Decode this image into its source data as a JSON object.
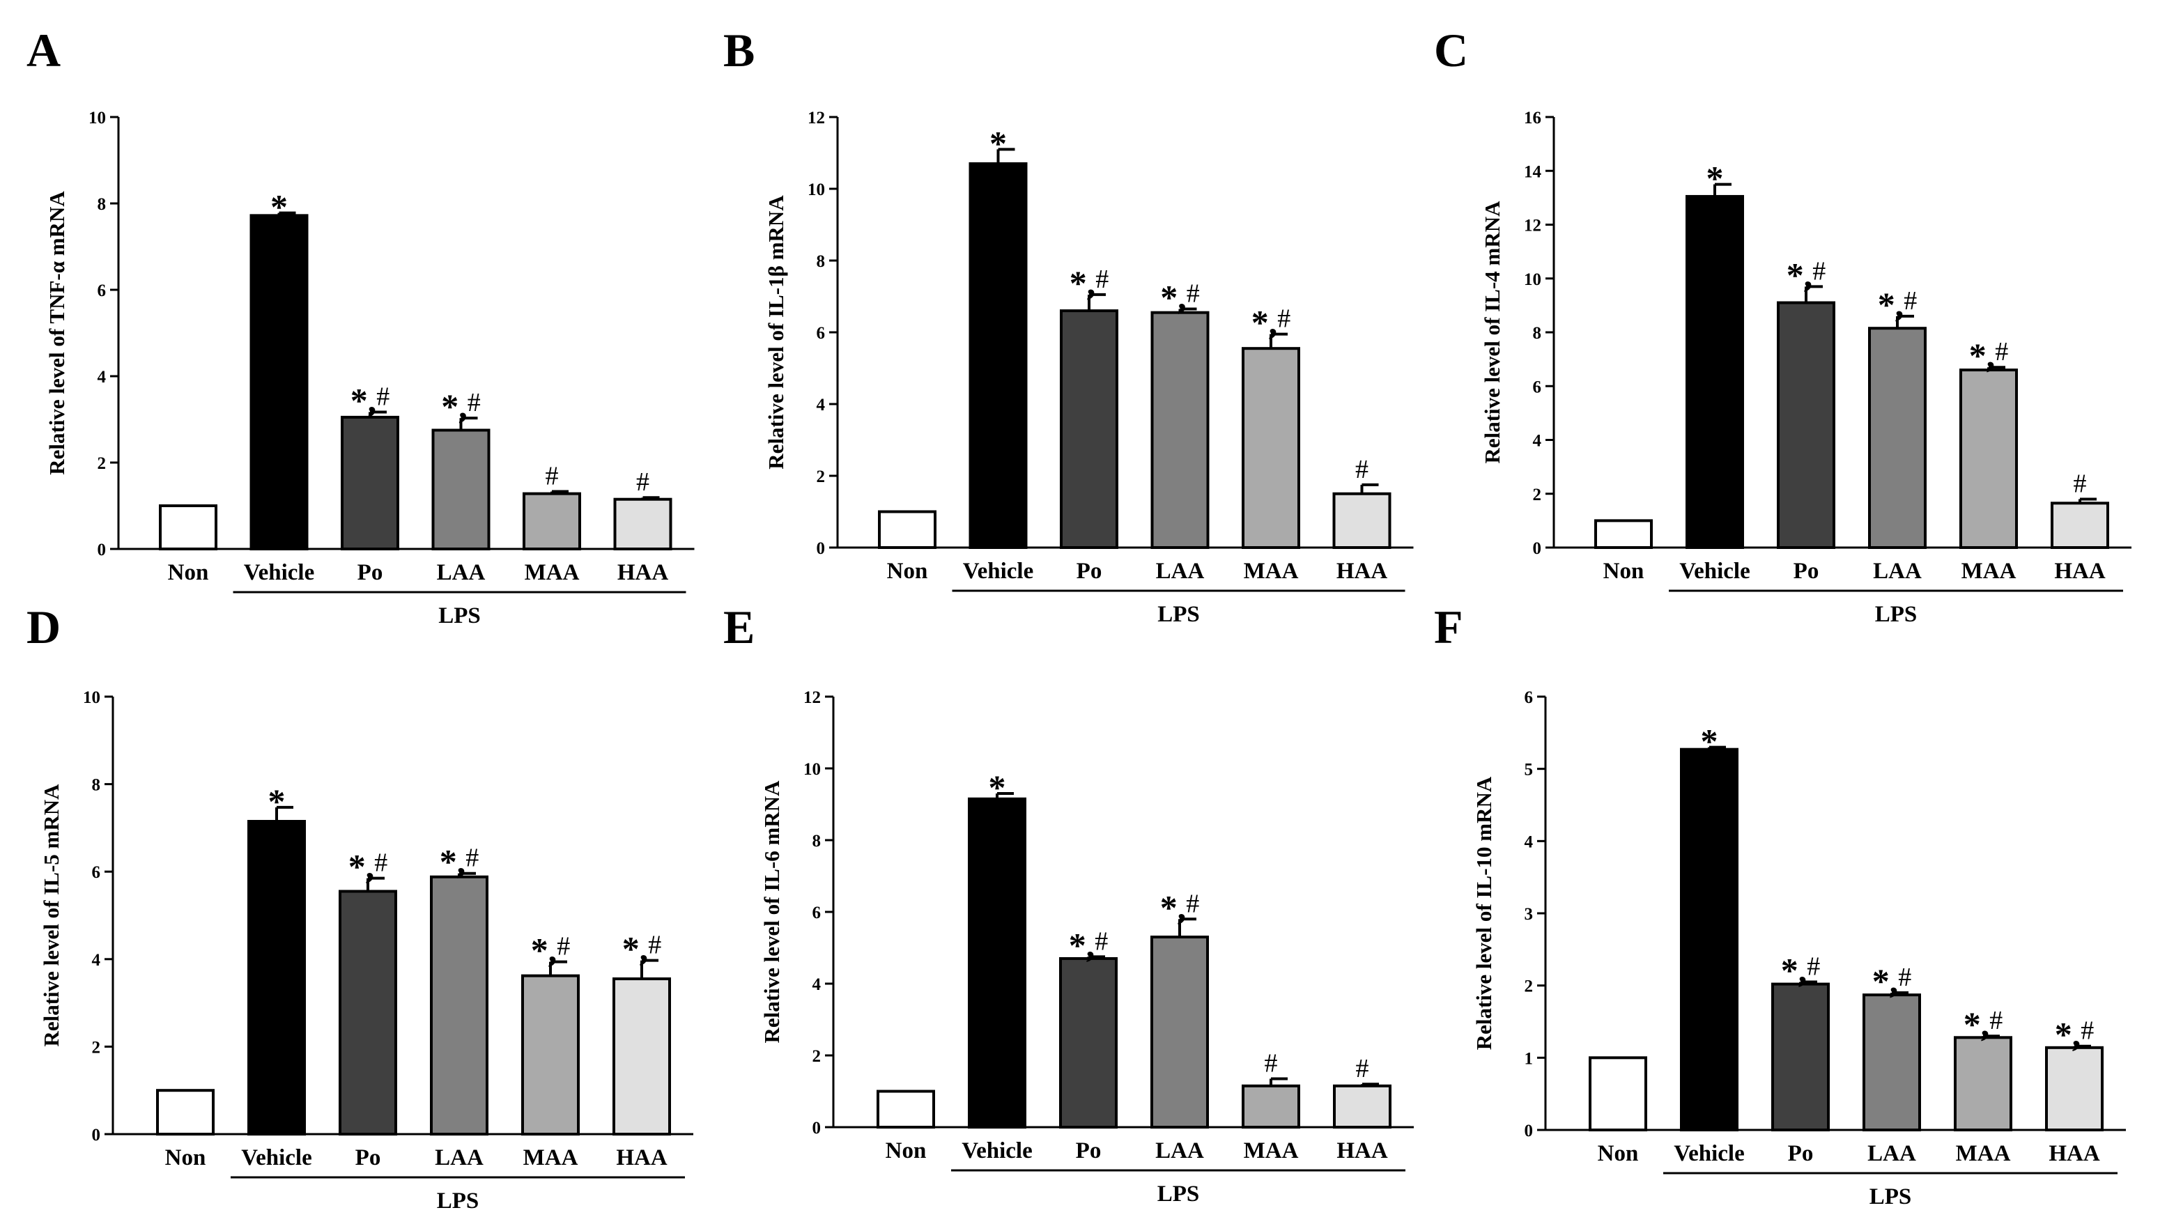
{
  "figure_style": {
    "bar_fills": [
      "#ffffff",
      "#000000",
      "#404040",
      "#808080",
      "#aaaaaa",
      "#e0e0e0"
    ],
    "bar_stroke": "#000000",
    "text_color": "#000000"
  },
  "chart_data": [
    {
      "type": "bar",
      "panel": "A",
      "ylabel": "Relative level of TNF-α mRNA",
      "categories": [
        "Non",
        "Vehicle",
        "Po",
        "LAA",
        "MAA",
        "HAA"
      ],
      "values": [
        1.0,
        7.72,
        3.05,
        2.75,
        1.28,
        1.15
      ],
      "errors": [
        0,
        0.06,
        0.12,
        0.28,
        0.05,
        0.04
      ],
      "annotations": [
        "",
        "*",
        "*,#",
        "*,#",
        "#",
        "#"
      ],
      "ylim": [
        0,
        10
      ],
      "yticks": [
        "0",
        "2",
        "4",
        "6",
        "8",
        "10"
      ],
      "group_label": "LPS"
    },
    {
      "type": "bar",
      "panel": "B",
      "ylabel": "Relative level of IL-1β mRNA",
      "categories": [
        "Non",
        "Vehicle",
        "Po",
        "LAA",
        "MAA",
        "HAA"
      ],
      "values": [
        1.0,
        10.7,
        6.6,
        6.55,
        5.55,
        1.5
      ],
      "errors": [
        0,
        0.4,
        0.45,
        0.1,
        0.4,
        0.25
      ],
      "annotations": [
        "",
        "*",
        "*,#",
        "*,#",
        "*,#",
        "#"
      ],
      "ylim": [
        0,
        12
      ],
      "yticks": [
        "0",
        "2",
        "4",
        "6",
        "8",
        "10",
        "12"
      ],
      "group_label": "LPS"
    },
    {
      "type": "bar",
      "panel": "C",
      "ylabel": "Relative level of IL-4 mRNA",
      "categories": [
        "Non",
        "Vehicle",
        "Po",
        "LAA",
        "MAA",
        "HAA"
      ],
      "values": [
        1.0,
        13.05,
        9.1,
        8.15,
        6.6,
        1.65
      ],
      "errors": [
        0,
        0.45,
        0.6,
        0.45,
        0.1,
        0.15
      ],
      "annotations": [
        "",
        "*",
        "*,#",
        "*,#",
        "*,#",
        "#"
      ],
      "ylim": [
        0,
        16
      ],
      "yticks": [
        "0",
        "2",
        "4",
        "6",
        "8",
        "10",
        "12",
        "14",
        "16"
      ],
      "group_label": "LPS"
    },
    {
      "type": "bar",
      "panel": "D",
      "ylabel": "Relative level of IL-5 mRNA",
      "categories": [
        "Non",
        "Vehicle",
        "Po",
        "LAA",
        "MAA",
        "HAA"
      ],
      "values": [
        1.0,
        7.15,
        5.55,
        5.88,
        3.62,
        3.55
      ],
      "errors": [
        0,
        0.32,
        0.3,
        0.08,
        0.32,
        0.42
      ],
      "annotations": [
        "",
        "*",
        "*,#",
        "*,#",
        "*,#",
        "*,#"
      ],
      "ylim": [
        0,
        10
      ],
      "yticks": [
        "0",
        "2",
        "4",
        "6",
        "8",
        "10"
      ],
      "group_label": "LPS"
    },
    {
      "type": "bar",
      "panel": "E",
      "ylabel": "Relative level of IL-6 mRNA",
      "categories": [
        "Non",
        "Vehicle",
        "Po",
        "LAA",
        "MAA",
        "HAA"
      ],
      "values": [
        1.0,
        9.15,
        4.7,
        5.3,
        1.15,
        1.15
      ],
      "errors": [
        0,
        0.15,
        0.05,
        0.5,
        0.2,
        0.05
      ],
      "annotations": [
        "",
        "*",
        "*,#",
        "*,#",
        "#",
        "#"
      ],
      "ylim": [
        0,
        12
      ],
      "yticks": [
        "0",
        "2",
        "4",
        "6",
        "8",
        "10",
        "12"
      ],
      "group_label": "LPS"
    },
    {
      "type": "bar",
      "panel": "F",
      "ylabel": "Relative level of IL-10 mRNA",
      "categories": [
        "Non",
        "Vehicle",
        "Po",
        "LAA",
        "MAA",
        "HAA"
      ],
      "values": [
        1.0,
        5.27,
        2.02,
        1.87,
        1.28,
        1.14
      ],
      "errors": [
        0,
        0.03,
        0.03,
        0.03,
        0.02,
        0.02
      ],
      "annotations": [
        "",
        "*",
        "*,#",
        "*,#",
        "*,#",
        "*,#"
      ],
      "ylim": [
        0,
        6
      ],
      "yticks": [
        "0",
        "1",
        "2",
        "3",
        "4",
        "5",
        "6"
      ],
      "group_label": "LPS"
    }
  ]
}
